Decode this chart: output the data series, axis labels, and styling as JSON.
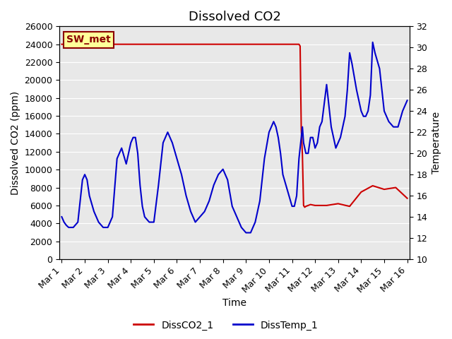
{
  "title": "Dissolved CO2",
  "xlabel": "Time",
  "ylabel_left": "Dissolved CO2 (ppm)",
  "ylabel_right": "Temperature",
  "annotation_label": "SW_met",
  "ylim_left": [
    0,
    26000
  ],
  "ylim_right": [
    10,
    32
  ],
  "yticks_left": [
    0,
    2000,
    4000,
    6000,
    8000,
    10000,
    12000,
    14000,
    16000,
    18000,
    20000,
    22000,
    24000,
    26000
  ],
  "yticks_right": [
    10,
    12,
    14,
    16,
    18,
    20,
    22,
    24,
    26,
    28,
    30,
    32
  ],
  "xtick_labels": [
    "Mar 1",
    "Mar 2",
    "Mar 3",
    "Mar 4",
    "Mar 5",
    "Mar 6",
    "Mar 7",
    "Mar 8",
    "Mar 9",
    "Mar 10",
    "Mar 11",
    "Mar 12",
    "Mar 13",
    "Mar 14",
    "Mar 15",
    "Mar 16"
  ],
  "xtick_positions": [
    0,
    1,
    2,
    3,
    4,
    5,
    6,
    7,
    8,
    9,
    10,
    11,
    12,
    13,
    14,
    15
  ],
  "xlim": [
    -0.1,
    15.1
  ],
  "legend_labels": [
    "DissCO2_1",
    "DissTemp_1"
  ],
  "co2_color": "#cc0000",
  "temp_color": "#0000cc",
  "co2_x": [
    0,
    0.5,
    1.0,
    1.5,
    2.0,
    2.5,
    3.0,
    3.5,
    4.0,
    4.5,
    5.0,
    5.5,
    6.0,
    6.5,
    7.0,
    7.5,
    8.0,
    8.5,
    9.0,
    9.5,
    10.0,
    10.3,
    10.35,
    10.4,
    10.45,
    10.5,
    10.55,
    10.6,
    10.7,
    10.8,
    11.0,
    11.5,
    12.0,
    12.5,
    13.0,
    13.5,
    14.0,
    14.5,
    15.0
  ],
  "co2_y": [
    24000,
    24000,
    24000,
    24000,
    24000,
    24000,
    24000,
    24000,
    24000,
    24000,
    24000,
    24000,
    24000,
    24000,
    24000,
    24000,
    24000,
    24000,
    24000,
    24000,
    24000,
    24000,
    23800,
    14500,
    11600,
    6000,
    5800,
    5900,
    6000,
    6100,
    6000,
    6000,
    6200,
    5900,
    7500,
    8200,
    7800,
    8000,
    6800
  ],
  "temp_x": [
    0,
    0.1,
    0.2,
    0.3,
    0.5,
    0.7,
    0.9,
    1.0,
    1.1,
    1.2,
    1.4,
    1.6,
    1.8,
    2.0,
    2.2,
    2.4,
    2.6,
    2.8,
    3.0,
    3.1,
    3.2,
    3.3,
    3.4,
    3.5,
    3.6,
    3.8,
    4.0,
    4.2,
    4.4,
    4.6,
    4.8,
    5.0,
    5.2,
    5.4,
    5.6,
    5.8,
    6.0,
    6.2,
    6.4,
    6.6,
    6.8,
    7.0,
    7.2,
    7.4,
    7.6,
    7.8,
    8.0,
    8.2,
    8.4,
    8.6,
    8.8,
    9.0,
    9.1,
    9.2,
    9.3,
    9.4,
    9.5,
    9.6,
    9.8,
    10.0,
    10.1,
    10.2,
    10.3,
    10.4,
    10.45,
    10.5,
    10.6,
    10.7,
    10.8,
    10.9,
    11.0,
    11.1,
    11.2,
    11.3,
    11.5,
    11.7,
    11.9,
    12.0,
    12.1,
    12.2,
    12.3,
    12.4,
    12.5,
    12.6,
    12.8,
    13.0,
    13.1,
    13.2,
    13.3,
    13.4,
    13.5,
    13.6,
    13.8,
    14.0,
    14.2,
    14.4,
    14.6,
    14.8,
    15.0
  ],
  "temp_y": [
    14.0,
    13.5,
    13.2,
    13.0,
    13.0,
    13.5,
    17.5,
    18.0,
    17.5,
    16.0,
    14.5,
    13.5,
    13.0,
    13.0,
    14.0,
    19.5,
    20.5,
    19.0,
    21.0,
    21.5,
    21.5,
    20.0,
    17.0,
    15.0,
    14.0,
    13.5,
    13.5,
    17.0,
    21.0,
    22.0,
    21.0,
    19.5,
    18.0,
    16.0,
    14.5,
    13.5,
    14.0,
    14.5,
    15.5,
    17.0,
    18.0,
    18.5,
    17.5,
    15.0,
    14.0,
    13.0,
    12.5,
    12.5,
    13.5,
    15.5,
    19.5,
    22.0,
    22.5,
    23.0,
    22.5,
    21.5,
    20.0,
    18.0,
    16.5,
    15.0,
    15.0,
    16.0,
    19.5,
    21.5,
    22.5,
    21.0,
    20.0,
    20.0,
    21.5,
    21.5,
    20.5,
    21.0,
    22.5,
    23.0,
    26.5,
    22.5,
    20.5,
    21.0,
    21.5,
    22.5,
    23.5,
    26.0,
    29.5,
    28.5,
    26.0,
    24.0,
    23.5,
    23.5,
    24.0,
    25.5,
    30.5,
    29.5,
    28.0,
    24.0,
    23.0,
    22.5,
    22.5,
    24.0,
    25.0
  ],
  "bg_color": "#e8e8e8",
  "annotation_box_bg": "#ffff99",
  "annotation_box_edge": "#8b0000",
  "title_fontsize": 13,
  "axis_label_fontsize": 10,
  "tick_fontsize": 9
}
